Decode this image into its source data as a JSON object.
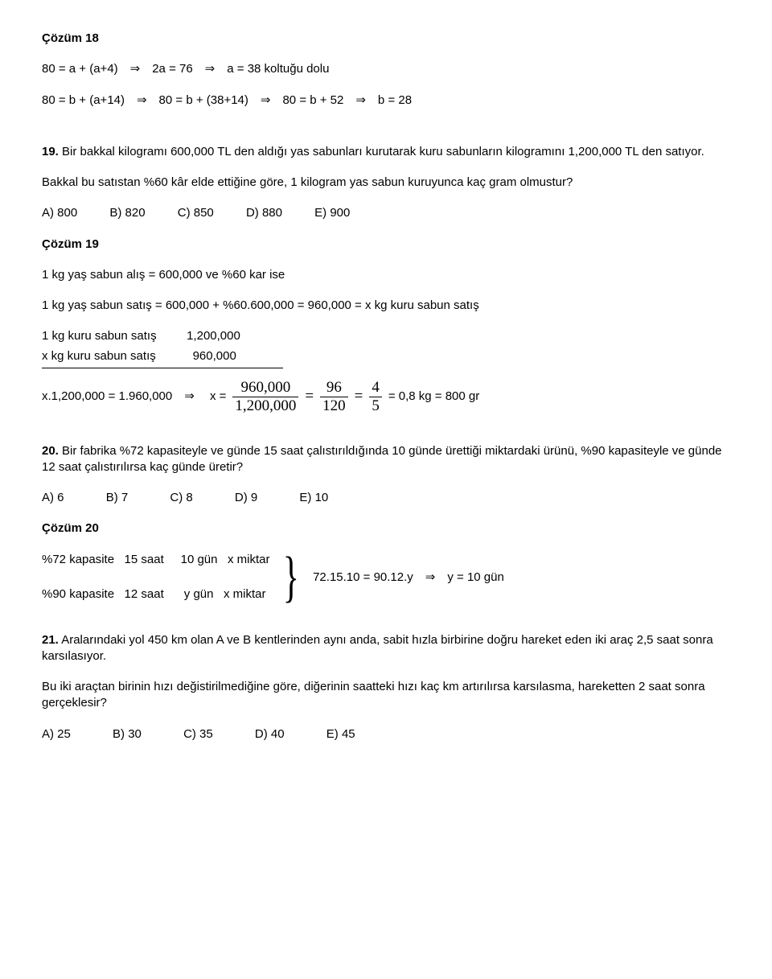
{
  "s18": {
    "title": "Çözüm 18",
    "line1": "80 = a + (a+4) ⇒ 2a = 76 ⇒ a = 38 koltuğu dolu",
    "line2": "80 = b + (a+14) ⇒ 80 = b + (38+14) ⇒ 80 = b + 52 ⇒ b = 28"
  },
  "q19": {
    "num": "19.",
    "text_a": " Bir bakkal kilogramı 600,000 TL den aldığı yas sabunları kurutarak kuru sabunların kilogramını 1,200,000  TL den satıyor.",
    "text_b": "Bakkal bu satıstan %60 kâr elde ettiğine göre, 1 kilogram yas sabun kuruyunca kaç gram olmustur?",
    "opts": {
      "a": "A) 800",
      "b": "B) 820",
      "c": "C) 850",
      "d": "D) 880",
      "e": "E) 900"
    }
  },
  "s19": {
    "title": "Çözüm 19",
    "l1": "1 kg yaş sabun alış = 600,000  ve  %60 kar ise",
    "l2": "1 kg yaş sabun satış = 600,000 + %60.600,000  = 960,000 = x kg kuru sabun satış",
    "l3": "1 kg kuru sabun satış         1,200,000",
    "l4": "x kg kuru sabun satış           960,000",
    "eq_left": "x.1,200,000 = 1.960,000 ⇒  x = ",
    "f1n": "960,000",
    "f1d": "1,200,000",
    "eq_mid1": " = ",
    "f2n": "96",
    "f2d": "120",
    "eq_mid2": " = ",
    "f3n": "4",
    "f3d": "5",
    "eq_right": " = 0,8 kg = 800 gr"
  },
  "q20": {
    "num": "20.",
    "text_a": " Bir fabrika %72 kapasiteyle ve günde 15 saat çalıstırıldığında 10 günde ürettiği miktardaki ürünü, %90 kapasiteyle ve günde 12 saat çalıstırılırsa kaç günde üretir?",
    "opts": {
      "a": "A) 6",
      "b": "B) 7",
      "c": "C) 8",
      "d": "D) 9",
      "e": "E) 10"
    }
  },
  "s20": {
    "title": "Çözüm 20",
    "row1": "%72 kapasite   15 saat     10 gün   x miktar",
    "row2": "%90 kapasite   12 saat      y gün   x miktar",
    "result": "72.15.10 = 90.12.y ⇒ y = 10 gün"
  },
  "q21": {
    "num": "21.",
    "text_a": " Aralarındaki yol 450 km olan A ve B kentlerinden aynı anda, sabit hızla birbirine doğru hareket eden iki araç 2,5 saat sonra karsılasıyor.",
    "text_b": "Bu iki araçtan birinin hızı değistirilmediğine göre, diğerinin saatteki hızı kaç km artırılırsa karsılasma, hareketten 2 saat sonra gerçeklesir?",
    "opts": {
      "a": "A) 25",
      "b": "B) 30",
      "c": "C) 35",
      "d": "D) 40",
      "e": "E) 45"
    }
  }
}
